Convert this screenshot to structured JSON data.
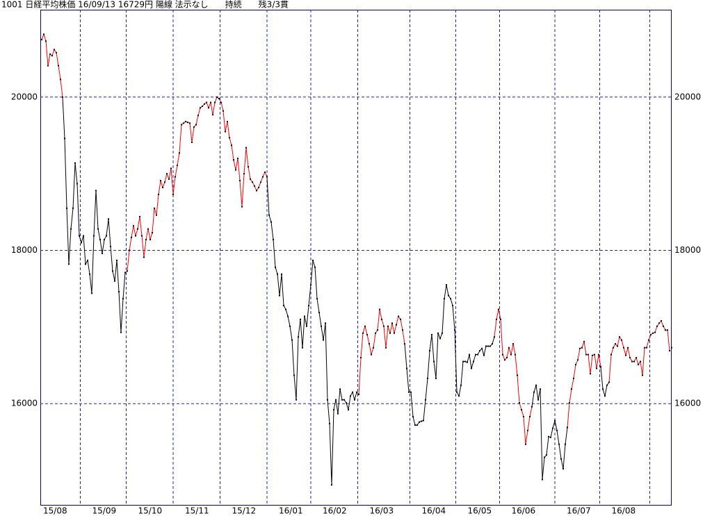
{
  "chart_data": {
    "type": "line",
    "title": "1001 日経平均株価 16/09/13 16729円 陽線 法示なし　　持続　　残3/3貫",
    "xlim": [
      -0.67,
      302
    ],
    "ylim": [
      14670,
      21140
    ],
    "yticks": [
      16000,
      18000,
      20000
    ],
    "xticks": [
      {
        "value": -0.67,
        "label": "15/08"
      },
      {
        "value": 18.5,
        "label": "15/09"
      },
      {
        "value": 40.5,
        "label": "15/10"
      },
      {
        "value": 63,
        "label": "15/11"
      },
      {
        "value": 85.5,
        "label": "15/12"
      },
      {
        "value": 108,
        "label": "16/01"
      },
      {
        "value": 129,
        "label": "16/02"
      },
      {
        "value": 151.5,
        "label": "16/03"
      },
      {
        "value": 176.5,
        "label": "16/04"
      },
      {
        "value": 198.5,
        "label": "16/05"
      },
      {
        "value": 219.5,
        "label": "16/06"
      },
      {
        "value": 246,
        "label": "16/07"
      },
      {
        "value": 267.5,
        "label": "16/08"
      }
    ],
    "xgrid": [
      18.5,
      40.5,
      63,
      85.5,
      108,
      129,
      151.5,
      176.5,
      198.5,
      219.5,
      246,
      267.5,
      291.5
    ],
    "grid": true,
    "point_color": "#000000",
    "values": [
      20750,
      20820,
      20730,
      20410,
      20560,
      20540,
      20620,
      20580,
      20410,
      20230,
      20000,
      19460,
      18550,
      17820,
      18280,
      18550,
      19140,
      18870,
      18190,
      18100,
      18190,
      17820,
      17870,
      17690,
      17440,
      18190,
      18780,
      18280,
      18140,
      17960,
      18140,
      18190,
      18410,
      18050,
      17730,
      17600,
      17870,
      17460,
      16930,
      17370,
      17710,
      17730,
      18000,
      18170,
      18320,
      18190,
      18280,
      18440,
      18190,
      17910,
      18140,
      18280,
      18140,
      18230,
      18550,
      18460,
      18730,
      18910,
      18820,
      18890,
      19000,
      18930,
      19070,
      18730,
      18960,
      19110,
      19270,
      19640,
      19660,
      19680,
      19670,
      19660,
      19410,
      19610,
      19640,
      19760,
      19860,
      19880,
      19910,
      19930,
      19860,
      19930,
      19770,
      19930,
      20000,
      19980,
      19930,
      19820,
      19550,
      19680,
      19470,
      19370,
      19180,
      19050,
      19200,
      18910,
      18570,
      19000,
      19340,
      19090,
      18930,
      18890,
      18840,
      18780,
      18820,
      18890,
      18960,
      19020,
      18960,
      18460,
      18370,
      18140,
      17780,
      17690,
      17410,
      17690,
      17280,
      17230,
      17140,
      17010,
      16830,
      16370,
      16050,
      16870,
      17100,
      16730,
      17140,
      17010,
      17280,
      17550,
      17870,
      17780,
      17370,
      17190,
      17010,
      16830,
      17050,
      16050,
      15740,
      14940,
      15920,
      16050,
      15870,
      16190,
      16050,
      16050,
      16010,
      15920,
      16100,
      16150,
      16050,
      16150,
      16120,
      16600,
      16920,
      17010,
      16900,
      16780,
      16640,
      16730,
      16920,
      16960,
      17230,
      17100,
      17010,
      16730,
      17010,
      16920,
      17050,
      16920,
      17030,
      17140,
      17100,
      16960,
      16780,
      16460,
      16150,
      16150,
      15830,
      15720,
      15720,
      15760,
      15770,
      15780,
      16050,
      16330,
      16690,
      16900,
      16550,
      16330,
      16920,
      16850,
      16920,
      17370,
      17550,
      17410,
      17370,
      17280,
      16960,
      16150,
      16100,
      16240,
      16550,
      16550,
      16540,
      16640,
      16460,
      16550,
      16640,
      16640,
      16690,
      16720,
      16630,
      16750,
      16750,
      16750,
      16780,
      16870,
      17100,
      17230,
      17100,
      16640,
      16570,
      16600,
      16730,
      16640,
      16780,
      16640,
      16370,
      16010,
      15920,
      15830,
      15470,
      15650,
      15830,
      15960,
      16150,
      16240,
      16050,
      16190,
      15010,
      15300,
      15330,
      15570,
      15560,
      15680,
      15780,
      15650,
      15470,
      15280,
      15150,
      15470,
      15690,
      16010,
      16190,
      16330,
      16510,
      16570,
      16720,
      16730,
      16810,
      16640,
      16640,
      16390,
      16630,
      16640,
      16460,
      16640,
      16480,
      16190,
      16100,
      16240,
      16280,
      16640,
      16730,
      16780,
      16750,
      16870,
      16830,
      16730,
      16630,
      16730,
      16600,
      16550,
      16550,
      16600,
      16510,
      16550,
      16370,
      16730,
      16730,
      16830,
      16900,
      16920,
      16930,
      17010,
      17050,
      17080,
      17010,
      16960,
      16960,
      16690,
      16730
    ],
    "colors": [
      "#f00",
      "#f00",
      "#f00",
      "#f00",
      "#f00",
      "#f00",
      "#f00",
      "#f00",
      "#f00",
      "#f00",
      "#f00",
      "#000",
      "#000",
      "#000",
      "#000",
      "#000",
      "#000",
      "#000",
      "#000",
      "#000",
      "#000",
      "#000",
      "#000",
      "#000",
      "#000",
      "#000",
      "#000",
      "#000",
      "#000",
      "#000",
      "#000",
      "#000",
      "#000",
      "#000",
      "#000",
      "#000",
      "#000",
      "#000",
      "#000",
      "#000",
      "#000",
      "#f00",
      "#f00",
      "#f00",
      "#f00",
      "#f00",
      "#f00",
      "#f00",
      "#f00",
      "#f00",
      "#f00",
      "#f00",
      "#f00",
      "#f00",
      "#f00",
      "#f00",
      "#f00",
      "#f00",
      "#f00",
      "#f00",
      "#f00",
      "#f00",
      "#f00",
      "#f00",
      "#f00",
      "#f00",
      "#f00",
      "#f00",
      "#f00",
      "#f00",
      "#f00",
      "#f00",
      "#f00",
      "#f00",
      "#f00",
      "#f00",
      "#f00",
      "#f00",
      "#f00",
      "#f00",
      "#f00",
      "#f00",
      "#f00",
      "#f00",
      "#f00",
      "#f00",
      "#f00",
      "#f00",
      "#f00",
      "#f00",
      "#f00",
      "#f00",
      "#f00",
      "#f00",
      "#f00",
      "#f00",
      "#f00",
      "#f00",
      "#f00",
      "#f00",
      "#f00",
      "#f00",
      "#f00",
      "#f00",
      "#f00",
      "#f00",
      "#f00",
      "#f00",
      "#f00",
      "#000",
      "#000",
      "#000",
      "#000",
      "#000",
      "#000",
      "#000",
      "#000",
      "#000",
      "#000",
      "#000",
      "#000",
      "#000",
      "#000",
      "#000",
      "#000",
      "#000",
      "#000",
      "#000",
      "#000",
      "#000",
      "#000",
      "#000",
      "#000",
      "#000",
      "#000",
      "#000",
      "#000",
      "#000",
      "#000",
      "#000",
      "#000",
      "#000",
      "#000",
      "#000",
      "#000",
      "#000",
      "#000",
      "#000",
      "#000",
      "#000",
      "#000",
      "#000",
      "#000",
      "#f00",
      "#f00",
      "#f00",
      "#f00",
      "#f00",
      "#f00",
      "#f00",
      "#f00",
      "#f00",
      "#f00",
      "#f00",
      "#f00",
      "#f00",
      "#f00",
      "#f00",
      "#f00",
      "#f00",
      "#f00",
      "#f00",
      "#f00",
      "#f00",
      "#f00",
      "#000",
      "#000",
      "#000",
      "#000",
      "#000",
      "#000",
      "#000",
      "#000",
      "#000",
      "#000",
      "#000",
      "#000",
      "#000",
      "#000",
      "#000",
      "#000",
      "#000",
      "#000",
      "#000",
      "#000",
      "#000",
      "#000",
      "#000",
      "#000",
      "#000",
      "#000",
      "#000",
      "#000",
      "#000",
      "#000",
      "#000",
      "#000",
      "#000",
      "#000",
      "#000",
      "#000",
      "#000",
      "#000",
      "#000",
      "#000",
      "#000",
      "#000",
      "#000",
      "#f00",
      "#f00",
      "#f00",
      "#f00",
      "#f00",
      "#f00",
      "#f00",
      "#f00",
      "#f00",
      "#f00",
      "#f00",
      "#f00",
      "#f00",
      "#f00",
      "#f00",
      "#f00",
      "#f00",
      "#f00",
      "#000",
      "#000",
      "#000",
      "#000",
      "#000",
      "#000",
      "#000",
      "#000",
      "#000",
      "#000",
      "#000",
      "#000",
      "#000",
      "#000",
      "#000",
      "#000",
      "#000",
      "#f00",
      "#f00",
      "#f00",
      "#f00",
      "#f00",
      "#f00",
      "#f00",
      "#f00",
      "#f00",
      "#f00",
      "#f00",
      "#f00",
      "#f00",
      "#f00",
      "#f00",
      "#f00",
      "#000",
      "#000",
      "#000",
      "#000",
      "#f00",
      "#f00",
      "#f00",
      "#f00",
      "#f00",
      "#f00",
      "#f00",
      "#f00",
      "#f00",
      "#f00",
      "#f00",
      "#f00",
      "#f00",
      "#f00",
      "#f00",
      "#f00",
      "#f00",
      "#f00",
      "#f00",
      "#f00",
      "#f00",
      "#f00",
      "#f00",
      "#f00",
      "#f00",
      "#f00",
      "#f00",
      "#f00",
      "#f00"
    ]
  }
}
